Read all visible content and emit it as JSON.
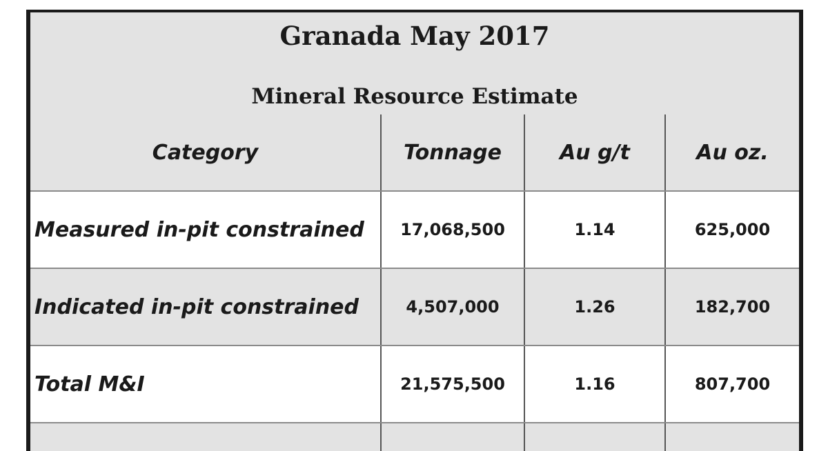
{
  "title": "Granada May 2017",
  "subtitle": "Mineral Resource Estimate",
  "table": {
    "headers": [
      "Category",
      "Tonnage",
      "Au g/t",
      "Au oz."
    ],
    "rows": [
      {
        "category": "Measured in-pit constrained",
        "tonnage": "17,068,500",
        "grade": "1.14",
        "ounces": "625,000"
      },
      {
        "category": "Indicated in-pit constrained",
        "tonnage": "4,507,000",
        "grade": "1.26",
        "ounces": "182,700"
      },
      {
        "category": "Total M&I",
        "tonnage": "21,575,500",
        "grade": "1.16",
        "ounces": "807,700"
      }
    ]
  },
  "colors": {
    "header_background": "#e3e3e3",
    "border": "#1a1a1a",
    "text": "#1a1a1a"
  }
}
